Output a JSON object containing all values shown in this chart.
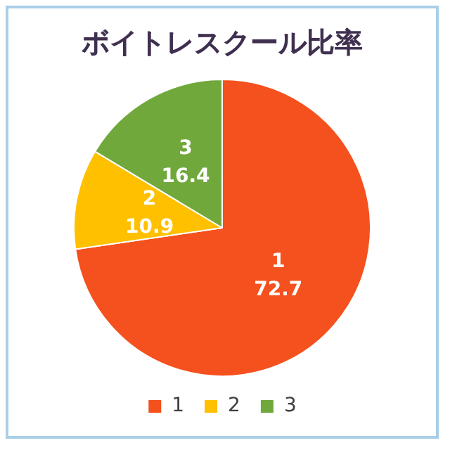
{
  "chart_data": {
    "type": "pie",
    "title": "ボイトレスクール比率",
    "categories": [
      "1",
      "2",
      "3"
    ],
    "values": [
      72.7,
      10.9,
      16.4
    ],
    "colors": [
      "#f4511e",
      "#ffc000",
      "#70a83c"
    ],
    "data_labels": true,
    "legend": "bottom"
  }
}
